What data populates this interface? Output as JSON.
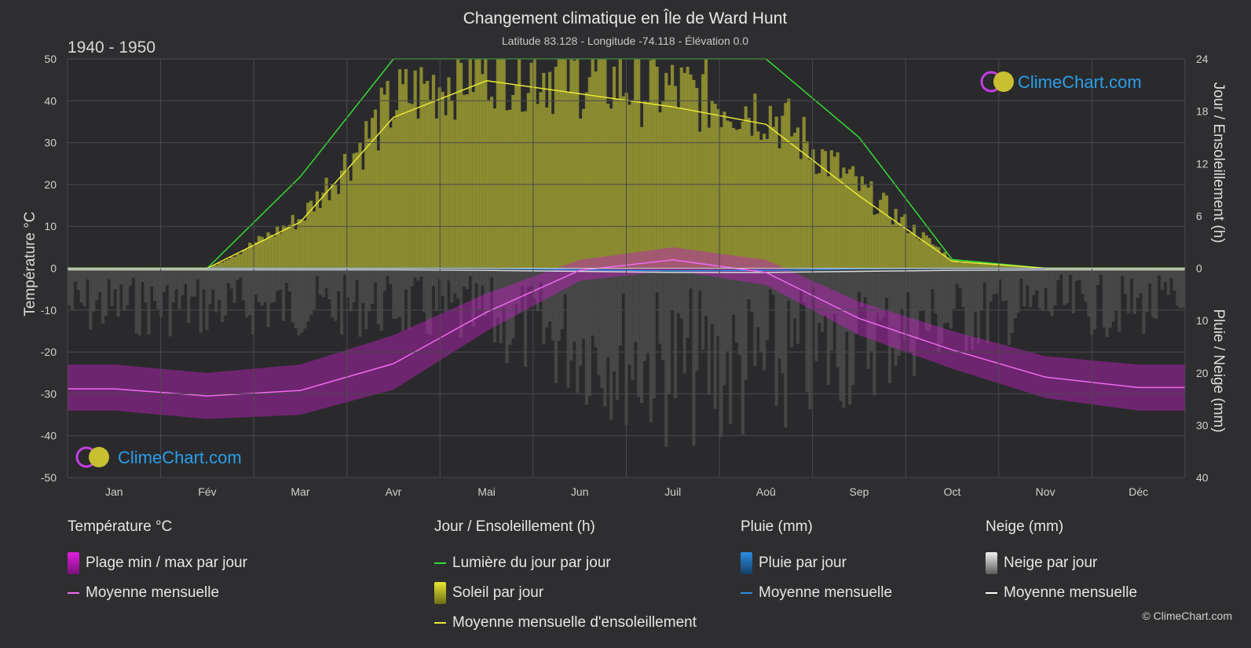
{
  "title": "Changement climatique en Île de Ward Hunt",
  "subtitle": "Latitude 83.128 - Longitude -74.118 - Élévation 0.0",
  "period": "1940 - 1950",
  "brand": "ClimeChart.com",
  "copyright": "© ClimeChart.com",
  "colors": {
    "background": "#2e2e30",
    "daylight": "#33dd33",
    "sunshine_fill": "#a8a832",
    "sunshine_mean": "#e8e838",
    "temp_band": "#c21fc2",
    "temp_mean": "#ee6aee",
    "rain": "#2a8ce0",
    "snow_fill": "#8c8c8c",
    "snow_mean": "#d8d8d8",
    "brand_text": "#2a9ee8"
  },
  "legend": {
    "temperature": {
      "heading": "Température °C",
      "items": [
        {
          "label": "Plage min / max par jour",
          "swatch": "box",
          "color": "#e020e0"
        },
        {
          "label": "Moyenne mensuelle",
          "swatch": "line",
          "color": "#ee6aee"
        }
      ]
    },
    "sun": {
      "heading": "Jour / Ensoleillement (h)",
      "items": [
        {
          "label": "Lumière du jour par jour",
          "swatch": "line",
          "color": "#33dd33"
        },
        {
          "label": "Soleil par jour",
          "swatch": "box",
          "color": "#d8d830"
        },
        {
          "label": "Moyenne mensuelle d'ensoleillement",
          "swatch": "line",
          "color": "#e8e838"
        }
      ]
    },
    "rain": {
      "heading": "Pluie (mm)",
      "items": [
        {
          "label": "Pluie par jour",
          "swatch": "box",
          "color": "#2a8ce0"
        },
        {
          "label": "Moyenne mensuelle",
          "swatch": "line",
          "color": "#2a8ce0"
        }
      ]
    },
    "snow": {
      "heading": "Neige (mm)",
      "items": [
        {
          "label": "Neige par jour",
          "swatch": "box",
          "color": "#e0e0e0"
        },
        {
          "label": "Moyenne mensuelle",
          "swatch": "line",
          "color": "#ffffff"
        }
      ]
    }
  },
  "chart_data": {
    "type": "line",
    "title": "Changement climatique en Île de Ward Hunt",
    "subtitle": "Latitude 83.128 - Longitude -74.118 - Élévation 0.0",
    "categories": [
      "Jan",
      "Fév",
      "Mar",
      "Avr",
      "Mai",
      "Jun",
      "Juil",
      "Aoû",
      "Sep",
      "Oct",
      "Nov",
      "Déc"
    ],
    "y_left": {
      "label": "Température °C",
      "range": [
        -50,
        50
      ],
      "ticks": [
        50,
        40,
        30,
        20,
        10,
        0,
        -10,
        -20,
        -30,
        -40,
        -50
      ]
    },
    "y_right_top": {
      "label": "Jour / Ensoleillement (h)",
      "range": [
        0,
        24
      ],
      "ticks": [
        24,
        18,
        12,
        6,
        0
      ]
    },
    "y_right_bottom": {
      "label": "Pluie / Neige (mm)",
      "range": [
        0,
        40
      ],
      "ticks": [
        0,
        10,
        20,
        30,
        40
      ]
    },
    "grid": true,
    "series": [
      {
        "name": "Moyenne mensuelle",
        "group": "temperature",
        "axis": "temp",
        "values": [
          -28.8,
          -30.5,
          -29.2,
          -22.8,
          -10.5,
          -0.5,
          2.0,
          -1.0,
          -12.0,
          -19.5,
          -26.0,
          -28.5
        ]
      },
      {
        "name": "Plage min / max par jour",
        "group": "temperature",
        "axis": "temp",
        "min": [
          -34,
          -36,
          -35,
          -29,
          -15,
          -3,
          -0.5,
          -4,
          -16,
          -24,
          -31,
          -34
        ],
        "max": [
          -23,
          -25,
          -23,
          -16,
          -6,
          2,
          5,
          2,
          -8,
          -15,
          -21,
          -23
        ]
      },
      {
        "name": "Lumière du jour par jour",
        "group": "sun",
        "axis": "hours",
        "values": [
          0,
          0,
          10.5,
          24,
          24,
          24,
          24,
          24,
          15.0,
          1.0,
          0,
          0
        ]
      },
      {
        "name": "Moyenne mensuelle d'ensoleillement",
        "group": "sun",
        "axis": "hours",
        "values": [
          0,
          0,
          5.3,
          17.3,
          21.5,
          20.0,
          18.5,
          16.5,
          8.3,
          0.8,
          0,
          0
        ]
      },
      {
        "name": "Moyenne mensuelle",
        "group": "rain",
        "axis": "precip",
        "values": [
          0,
          0,
          0,
          0,
          0,
          0.3,
          0.5,
          0.4,
          0.1,
          0,
          0,
          0
        ]
      },
      {
        "name": "Moyenne mensuelle",
        "group": "snow",
        "axis": "precip",
        "values": [
          0.3,
          0.3,
          0.3,
          0.3,
          0.4,
          0.6,
          0.8,
          0.8,
          0.6,
          0.4,
          0.3,
          0.3
        ]
      }
    ]
  }
}
